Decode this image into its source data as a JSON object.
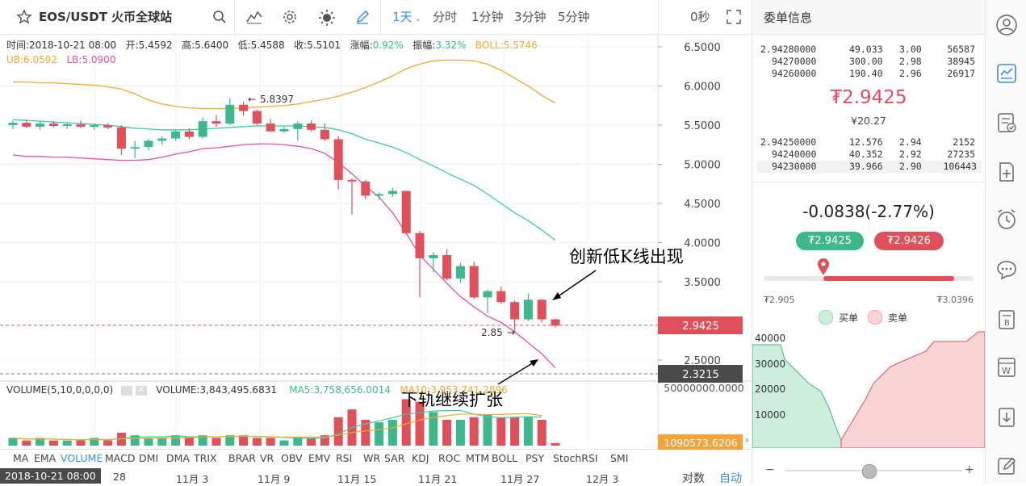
{
  "toolbar": {
    "symbol": "EOS/USDT 火币全球站",
    "timeframes": [
      "1天",
      "分时",
      "1分钟",
      "3分钟",
      "5分钟"
    ],
    "countdown": "0秒",
    "colors": {
      "active": "#3a8ee6",
      "up": "#3db88b",
      "down": "#e0505a"
    }
  },
  "legend": {
    "time": "时间:2018-10-21 08:00",
    "open": "开:5.4592",
    "high": "高:5.6400",
    "low": "低:5.4588",
    "close": "收:5.5101",
    "change_label": "涨幅:",
    "change": "0.92%",
    "amp_label": "振幅:",
    "amp": "3.32%",
    "boll": "BOLL:5.5746",
    "ub": "UB:6.0592",
    "lb": "LB:5.0900"
  },
  "price_axis": [
    "6.5000",
    "6.0000",
    "5.5000",
    "5.0000",
    "4.5000",
    "4.0000",
    "3.5000",
    "3.0000",
    "2.5000"
  ],
  "price_tags": {
    "last": "2.9425",
    "line2": "2.3215"
  },
  "annotations": {
    "high": "5.8397",
    "low": "2.85",
    "new_low": "创新低K线出现",
    "lower_band": "下轨继续扩张"
  },
  "volume_legend": {
    "title": "VOLUME(5,10,0,0,0,0)",
    "volume": "VOLUME:3,843,495.6831",
    "ma5": "MA5:3,758,656.0014",
    "ma10": "MA10:3,953,741.2896"
  },
  "volume_axis": {
    "top": "50000000.0000",
    "tag": "1090573.6206"
  },
  "indicator_tabs": [
    "MA",
    "EMA",
    "VOLUME",
    "MACD",
    "DMI",
    "DMA",
    "TRIX",
    "BRAR",
    "VR",
    "OBV",
    "EMV",
    "RSI",
    "WR",
    "SAR",
    "KDJ",
    "ROC",
    "MTM",
    "BOLL",
    "PSY",
    "StochRSI",
    "SMI"
  ],
  "active_tab": "VOLUME",
  "time_axis": {
    "current": "2018-10-21 08:00",
    "ticks": [
      "28",
      "11月 3",
      "11月 9",
      "11月 15",
      "11月 21",
      "11月 27",
      "12月 3"
    ],
    "log_label": "对数",
    "auto_label": "自动"
  },
  "orderbook": {
    "title": "委单信息",
    "asks": [
      {
        "price": "2.94280000",
        "amount": "49.033",
        "total": "3.00",
        "sum": "56587"
      },
      {
        "price": "94270000",
        "amount": "300.00",
        "total": "2.98",
        "sum": "38945"
      },
      {
        "price": "94260000",
        "amount": "190.40",
        "total": "2.96",
        "sum": "26917"
      }
    ],
    "last_price": "₮2.9425",
    "last_price_cny": "¥20.27",
    "bids": [
      {
        "price": "2.94250000",
        "amount": "12.576",
        "total": "2.94",
        "sum": "2152"
      },
      {
        "price": "94240000",
        "amount": "40.352",
        "total": "2.92",
        "sum": "27235"
      },
      {
        "price": "94230000",
        "amount": "39.966",
        "total": "2.90",
        "sum": "106443"
      }
    ]
  },
  "depth": {
    "change": "-0.0838(-2.77%)",
    "buy_price": "₮2.9425",
    "sell_price": "₮2.9426",
    "range_low": "₮2.905",
    "range_high": "₮3.0396",
    "buy_label": "买单",
    "sell_label": "卖单",
    "y_axis": [
      "40000",
      "30000",
      "20000",
      "10000"
    ],
    "zoom_minus": "−",
    "zoom_plus": "+"
  },
  "sidebar_icons": [
    "user-icon",
    "chart-icon",
    "checklist-icon",
    "add-page-icon",
    "alarm-icon",
    "chat-icon",
    "ledger-icon",
    "whitepaper-icon",
    "download-icon",
    "edit-icon"
  ]
}
